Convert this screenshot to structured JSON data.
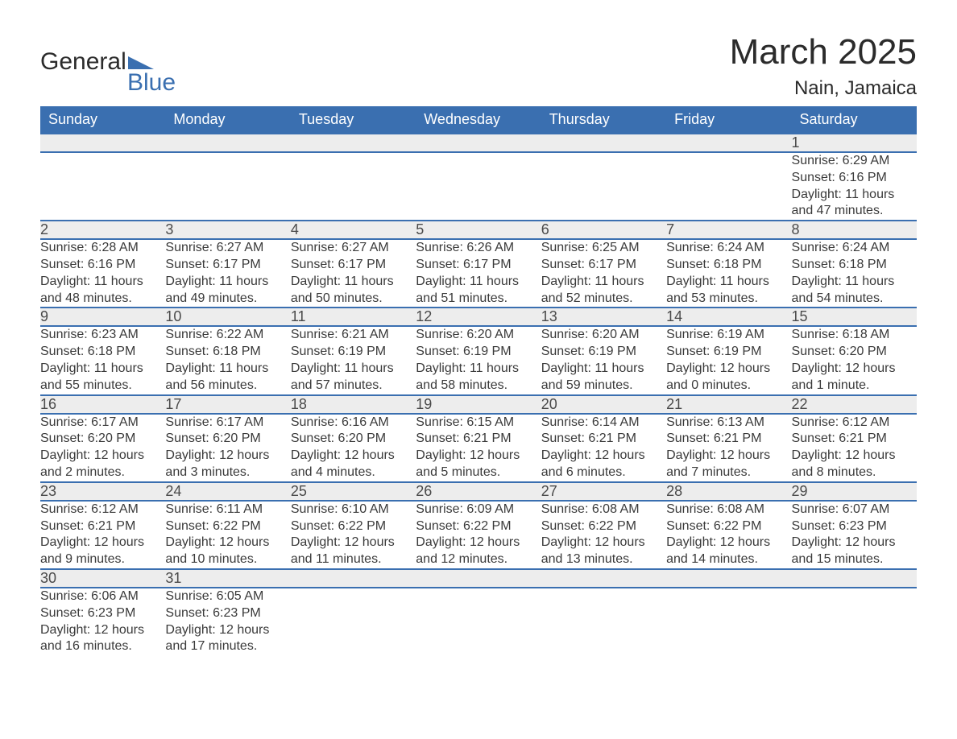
{
  "brand": {
    "word1": "General",
    "word2": "Blue",
    "accent_color": "#3a6fb0"
  },
  "title": "March 2025",
  "location": "Nain, Jamaica",
  "colors": {
    "header_bg": "#3a6fb0",
    "header_text": "#ffffff",
    "daynum_bg": "#ededed",
    "row_border": "#3a6fb0",
    "body_text": "#3a3a3a",
    "page_bg": "#ffffff"
  },
  "day_headers": [
    "Sunday",
    "Monday",
    "Tuesday",
    "Wednesday",
    "Thursday",
    "Friday",
    "Saturday"
  ],
  "weeks": [
    [
      null,
      null,
      null,
      null,
      null,
      null,
      {
        "n": "1",
        "sunrise": "Sunrise: 6:29 AM",
        "sunset": "Sunset: 6:16 PM",
        "day1": "Daylight: 11 hours",
        "day2": "and 47 minutes."
      }
    ],
    [
      {
        "n": "2",
        "sunrise": "Sunrise: 6:28 AM",
        "sunset": "Sunset: 6:16 PM",
        "day1": "Daylight: 11 hours",
        "day2": "and 48 minutes."
      },
      {
        "n": "3",
        "sunrise": "Sunrise: 6:27 AM",
        "sunset": "Sunset: 6:17 PM",
        "day1": "Daylight: 11 hours",
        "day2": "and 49 minutes."
      },
      {
        "n": "4",
        "sunrise": "Sunrise: 6:27 AM",
        "sunset": "Sunset: 6:17 PM",
        "day1": "Daylight: 11 hours",
        "day2": "and 50 minutes."
      },
      {
        "n": "5",
        "sunrise": "Sunrise: 6:26 AM",
        "sunset": "Sunset: 6:17 PM",
        "day1": "Daylight: 11 hours",
        "day2": "and 51 minutes."
      },
      {
        "n": "6",
        "sunrise": "Sunrise: 6:25 AM",
        "sunset": "Sunset: 6:17 PM",
        "day1": "Daylight: 11 hours",
        "day2": "and 52 minutes."
      },
      {
        "n": "7",
        "sunrise": "Sunrise: 6:24 AM",
        "sunset": "Sunset: 6:18 PM",
        "day1": "Daylight: 11 hours",
        "day2": "and 53 minutes."
      },
      {
        "n": "8",
        "sunrise": "Sunrise: 6:24 AM",
        "sunset": "Sunset: 6:18 PM",
        "day1": "Daylight: 11 hours",
        "day2": "and 54 minutes."
      }
    ],
    [
      {
        "n": "9",
        "sunrise": "Sunrise: 6:23 AM",
        "sunset": "Sunset: 6:18 PM",
        "day1": "Daylight: 11 hours",
        "day2": "and 55 minutes."
      },
      {
        "n": "10",
        "sunrise": "Sunrise: 6:22 AM",
        "sunset": "Sunset: 6:18 PM",
        "day1": "Daylight: 11 hours",
        "day2": "and 56 minutes."
      },
      {
        "n": "11",
        "sunrise": "Sunrise: 6:21 AM",
        "sunset": "Sunset: 6:19 PM",
        "day1": "Daylight: 11 hours",
        "day2": "and 57 minutes."
      },
      {
        "n": "12",
        "sunrise": "Sunrise: 6:20 AM",
        "sunset": "Sunset: 6:19 PM",
        "day1": "Daylight: 11 hours",
        "day2": "and 58 minutes."
      },
      {
        "n": "13",
        "sunrise": "Sunrise: 6:20 AM",
        "sunset": "Sunset: 6:19 PM",
        "day1": "Daylight: 11 hours",
        "day2": "and 59 minutes."
      },
      {
        "n": "14",
        "sunrise": "Sunrise: 6:19 AM",
        "sunset": "Sunset: 6:19 PM",
        "day1": "Daylight: 12 hours",
        "day2": "and 0 minutes."
      },
      {
        "n": "15",
        "sunrise": "Sunrise: 6:18 AM",
        "sunset": "Sunset: 6:20 PM",
        "day1": "Daylight: 12 hours",
        "day2": "and 1 minute."
      }
    ],
    [
      {
        "n": "16",
        "sunrise": "Sunrise: 6:17 AM",
        "sunset": "Sunset: 6:20 PM",
        "day1": "Daylight: 12 hours",
        "day2": "and 2 minutes."
      },
      {
        "n": "17",
        "sunrise": "Sunrise: 6:17 AM",
        "sunset": "Sunset: 6:20 PM",
        "day1": "Daylight: 12 hours",
        "day2": "and 3 minutes."
      },
      {
        "n": "18",
        "sunrise": "Sunrise: 6:16 AM",
        "sunset": "Sunset: 6:20 PM",
        "day1": "Daylight: 12 hours",
        "day2": "and 4 minutes."
      },
      {
        "n": "19",
        "sunrise": "Sunrise: 6:15 AM",
        "sunset": "Sunset: 6:21 PM",
        "day1": "Daylight: 12 hours",
        "day2": "and 5 minutes."
      },
      {
        "n": "20",
        "sunrise": "Sunrise: 6:14 AM",
        "sunset": "Sunset: 6:21 PM",
        "day1": "Daylight: 12 hours",
        "day2": "and 6 minutes."
      },
      {
        "n": "21",
        "sunrise": "Sunrise: 6:13 AM",
        "sunset": "Sunset: 6:21 PM",
        "day1": "Daylight: 12 hours",
        "day2": "and 7 minutes."
      },
      {
        "n": "22",
        "sunrise": "Sunrise: 6:12 AM",
        "sunset": "Sunset: 6:21 PM",
        "day1": "Daylight: 12 hours",
        "day2": "and 8 minutes."
      }
    ],
    [
      {
        "n": "23",
        "sunrise": "Sunrise: 6:12 AM",
        "sunset": "Sunset: 6:21 PM",
        "day1": "Daylight: 12 hours",
        "day2": "and 9 minutes."
      },
      {
        "n": "24",
        "sunrise": "Sunrise: 6:11 AM",
        "sunset": "Sunset: 6:22 PM",
        "day1": "Daylight: 12 hours",
        "day2": "and 10 minutes."
      },
      {
        "n": "25",
        "sunrise": "Sunrise: 6:10 AM",
        "sunset": "Sunset: 6:22 PM",
        "day1": "Daylight: 12 hours",
        "day2": "and 11 minutes."
      },
      {
        "n": "26",
        "sunrise": "Sunrise: 6:09 AM",
        "sunset": "Sunset: 6:22 PM",
        "day1": "Daylight: 12 hours",
        "day2": "and 12 minutes."
      },
      {
        "n": "27",
        "sunrise": "Sunrise: 6:08 AM",
        "sunset": "Sunset: 6:22 PM",
        "day1": "Daylight: 12 hours",
        "day2": "and 13 minutes."
      },
      {
        "n": "28",
        "sunrise": "Sunrise: 6:08 AM",
        "sunset": "Sunset: 6:22 PM",
        "day1": "Daylight: 12 hours",
        "day2": "and 14 minutes."
      },
      {
        "n": "29",
        "sunrise": "Sunrise: 6:07 AM",
        "sunset": "Sunset: 6:23 PM",
        "day1": "Daylight: 12 hours",
        "day2": "and 15 minutes."
      }
    ],
    [
      {
        "n": "30",
        "sunrise": "Sunrise: 6:06 AM",
        "sunset": "Sunset: 6:23 PM",
        "day1": "Daylight: 12 hours",
        "day2": "and 16 minutes."
      },
      {
        "n": "31",
        "sunrise": "Sunrise: 6:05 AM",
        "sunset": "Sunset: 6:23 PM",
        "day1": "Daylight: 12 hours",
        "day2": "and 17 minutes."
      },
      null,
      null,
      null,
      null,
      null
    ]
  ]
}
